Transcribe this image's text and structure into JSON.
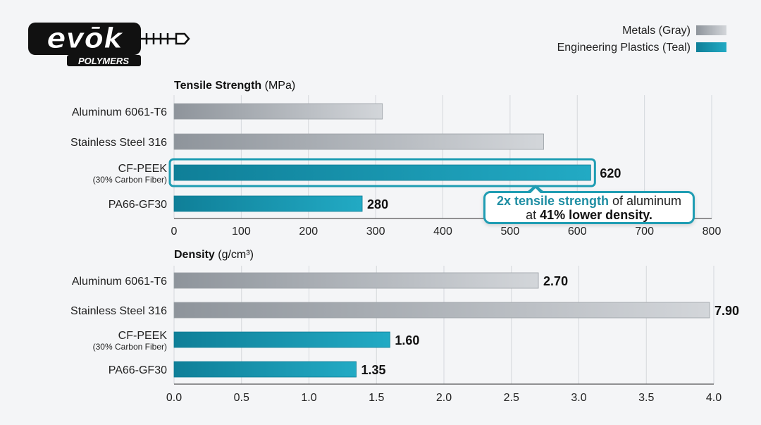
{
  "logo": {
    "text": "evōk",
    "subtext": "POLYMERS"
  },
  "legend": [
    {
      "label": "Metals (Gray)",
      "color": "#a9adb3"
    },
    {
      "label": "Engineering Plastics (Teal)",
      "color": "#1a9bb5"
    }
  ],
  "callout": {
    "highlight": "2x tensile strength",
    "text1": " of aluminum",
    "text2": "at ",
    "bold": "41% lower density."
  },
  "chart_data": [
    {
      "type": "bar",
      "orientation": "horizontal",
      "title": "Tensile Strength",
      "unit": "(MPa)",
      "categories": [
        "Aluminum 6061-T6",
        "Stainless Steel 316",
        "CF-PEEK",
        "PA66-GF30"
      ],
      "category_sublabels": [
        "",
        "",
        "(30% Carbon Fiber)",
        ""
      ],
      "groups": [
        "Metals",
        "Metals",
        "Engineering Plastics",
        "Engineering Plastics"
      ],
      "values": [
        310,
        550,
        620,
        280
      ],
      "data_labels": [
        "",
        "",
        "620",
        "280"
      ],
      "highlighted": "CF-PEEK",
      "xlim": [
        0,
        800
      ],
      "ticks": [
        "0",
        "100",
        "200",
        "300",
        "400",
        "500",
        "600",
        "700",
        "800"
      ],
      "grid": true
    },
    {
      "type": "bar",
      "orientation": "horizontal",
      "title": "Density",
      "unit": "(g/cm³)",
      "categories": [
        "Aluminum 6061-T6",
        "Stainless Steel 316",
        "CF-PEEK",
        "PA66-GF30"
      ],
      "category_sublabels": [
        "",
        "",
        "(30% Carbon Fiber)",
        ""
      ],
      "groups": [
        "Metals",
        "Metals",
        "Engineering Plastics",
        "Engineering Plastics"
      ],
      "values": [
        2.7,
        7.9,
        1.6,
        1.35
      ],
      "data_labels": [
        "2.70",
        "7.90",
        "1.60",
        "1.35"
      ],
      "xlim": [
        0,
        4.0
      ],
      "ticks": [
        "0.0",
        "0.5",
        "1.0",
        "1.5",
        "2.0",
        "2.5",
        "3.0",
        "3.5",
        "4.0"
      ],
      "grid": true
    }
  ]
}
